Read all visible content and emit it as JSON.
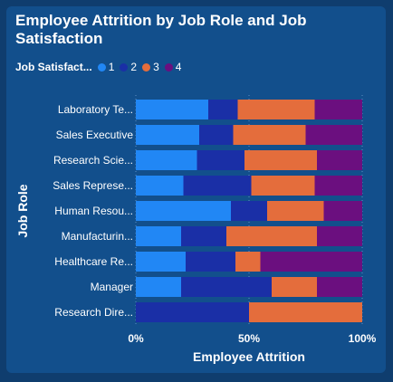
{
  "chart_data": {
    "type": "bar",
    "orientation": "horizontal",
    "stacked": "100%",
    "title": "Employee Attrition by Job Role and Job Satisfaction",
    "legend_title": "Job Satisfact...",
    "legend_position": "top-left",
    "xlabel": "Employee Attrition",
    "ylabel": "Job Role",
    "xlim": [
      0,
      100
    ],
    "x_ticks": [
      "0%",
      "50%",
      "100%"
    ],
    "grid": true,
    "categories": [
      "Laboratory Te...",
      "Sales Executive",
      "Research Scie...",
      "Sales Represe...",
      "Human Resou...",
      "Manufacturin...",
      "Healthcare Re...",
      "Manager",
      "Research Dire..."
    ],
    "series": [
      {
        "name": "1",
        "color": "#2187f5",
        "values": [
          32,
          28,
          27,
          21,
          42,
          20,
          22,
          20,
          0
        ]
      },
      {
        "name": "2",
        "color": "#1a2fa6",
        "values": [
          13,
          15,
          21,
          30,
          16,
          20,
          22,
          40,
          50
        ]
      },
      {
        "name": "3",
        "color": "#e46d3c",
        "values": [
          34,
          32,
          32,
          28,
          25,
          40,
          11,
          20,
          50
        ]
      },
      {
        "name": "4",
        "color": "#6b0f7f",
        "values": [
          21,
          25,
          20,
          21,
          17,
          20,
          45,
          20,
          0
        ]
      }
    ]
  }
}
